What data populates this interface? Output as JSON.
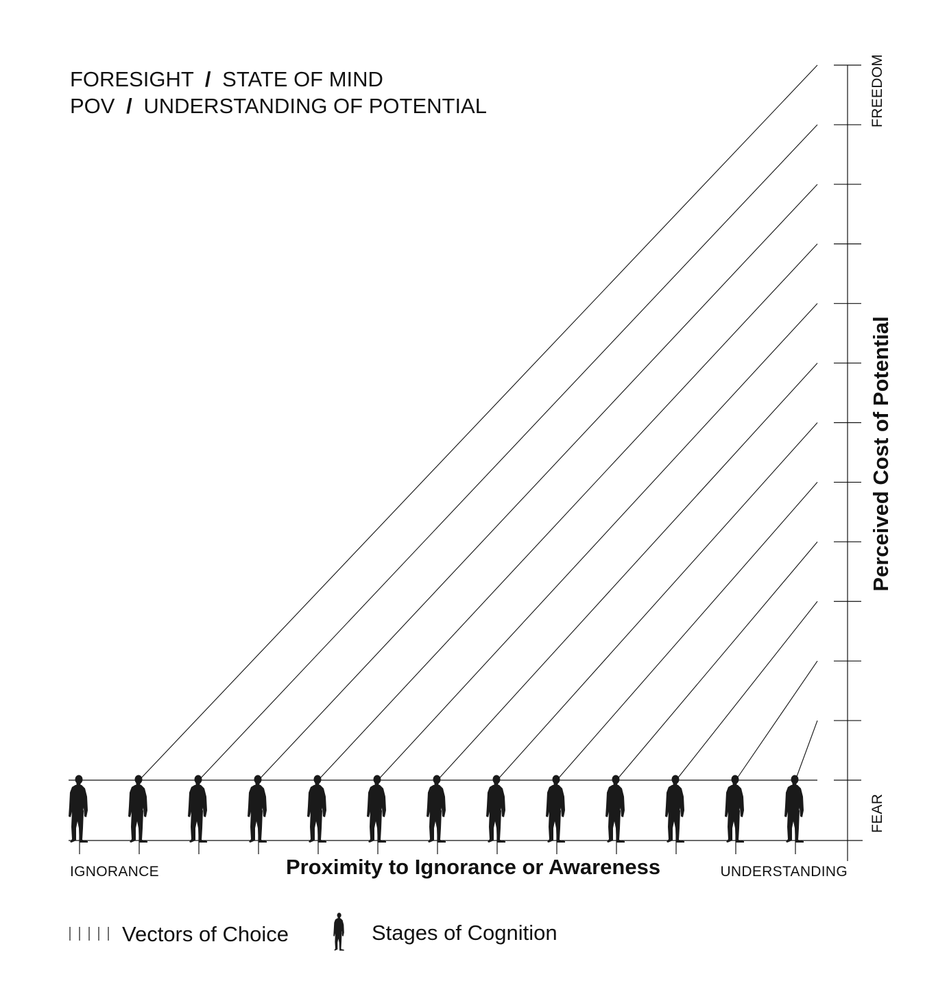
{
  "title": {
    "line1_left": "FORESIGHT",
    "line1_slash": "/",
    "line1_right": "STATE OF MIND",
    "line2_left": "POV",
    "line2_slash": "/",
    "line2_right": "UNDERSTANDING OF POTENTIAL"
  },
  "x_axis": {
    "title": "Proximity to Ignorance or Awareness",
    "left_label": "IGNORANCE",
    "right_label": "UNDERSTANDING"
  },
  "y_axis": {
    "title": "Perceived Cost of Potential",
    "top_label": "FREEDOM",
    "bottom_label": "FEAR"
  },
  "stages": {
    "count": 13
  },
  "legend": {
    "vectors_label": "Vectors of Choice",
    "stages_label": "Stages of Cognition",
    "vectors_icon": "vertical-bars-icon",
    "stages_icon": "standing-person-icon"
  },
  "colors": {
    "ink": "#111111",
    "figure": "#1a1a1a",
    "background": "#ffffff"
  }
}
